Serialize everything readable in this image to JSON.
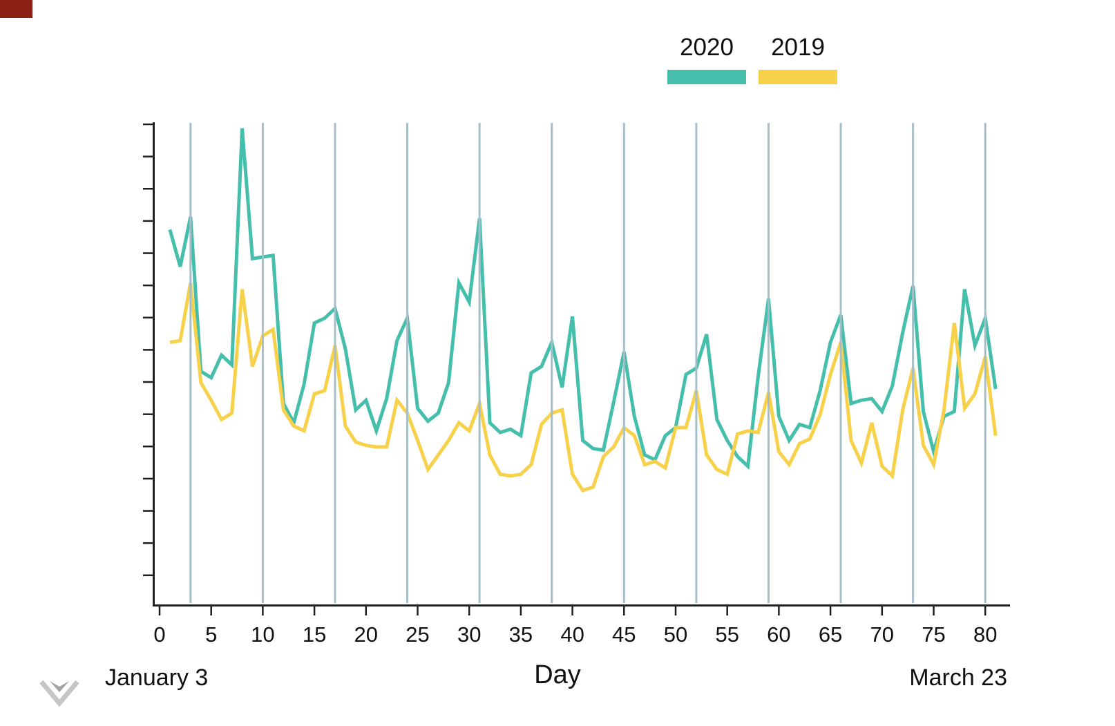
{
  "page": {
    "background": "#ffffff"
  },
  "corner_marker": {
    "color": "#8b2015"
  },
  "legend": {
    "items": [
      {
        "label": "2020",
        "color": "#45bfac"
      },
      {
        "label": "2019",
        "color": "#f8d14b"
      }
    ]
  },
  "axis": {
    "x_tick_values": [
      0,
      5,
      10,
      15,
      20,
      25,
      30,
      35,
      40,
      45,
      50,
      55,
      60,
      65,
      70,
      75,
      80
    ],
    "gridline_days": [
      3,
      10,
      17,
      24,
      31,
      38,
      45,
      52,
      59,
      66,
      73,
      80
    ],
    "y_tick_count": 15,
    "xlabel": "Day",
    "start_annotation": "January 3",
    "end_annotation": "March 23",
    "axis_color": "#1f1f1f",
    "gridline_color": "#a6bec7",
    "tick_label_color": "#111111"
  },
  "chart_data": {
    "type": "line",
    "title": "",
    "xlabel": "Day",
    "ylabel": "",
    "x_range": [
      0,
      81
    ],
    "x_axis_note": "days numbered 1-81; day 1 = January 3, day 81 = March 23; vertical gridlines mark weekly intervals (days 3,10,17,24,31,38,45,52,59,66,73,80)",
    "y_axis_note": "no numeric y-axis labels shown; values below are in y-axis tick units (15 unlabeled ticks, axis baseline = 0)",
    "legend_position": "top",
    "grid": {
      "vertical_weekly": true,
      "horizontal": false
    },
    "x": [
      1,
      2,
      3,
      4,
      5,
      6,
      7,
      8,
      9,
      10,
      11,
      12,
      13,
      14,
      15,
      16,
      17,
      18,
      19,
      20,
      21,
      22,
      23,
      24,
      25,
      26,
      27,
      28,
      29,
      30,
      31,
      32,
      33,
      34,
      35,
      36,
      37,
      38,
      39,
      40,
      41,
      42,
      43,
      44,
      45,
      46,
      47,
      48,
      49,
      50,
      51,
      52,
      53,
      54,
      55,
      56,
      57,
      58,
      59,
      60,
      61,
      62,
      63,
      64,
      65,
      66,
      67,
      68,
      69,
      70,
      71,
      72,
      73,
      74,
      75,
      76,
      77,
      78,
      79,
      80,
      81
    ],
    "series": [
      {
        "name": "2020",
        "color": "#45bfac",
        "values": [
          11.6,
          10.45,
          12,
          7.2,
          7,
          7.7,
          7.4,
          14.75,
          10.7,
          10.75,
          10.8,
          6.2,
          5.6,
          6.8,
          8.7,
          8.85,
          9.15,
          7.9,
          6,
          6.3,
          5.35,
          6.35,
          8.15,
          8.85,
          6.05,
          5.65,
          5.9,
          6.85,
          9.95,
          9.35,
          11.95,
          5.6,
          5.3,
          5.4,
          5.2,
          7.15,
          7.35,
          8.1,
          6.7,
          8.9,
          5.05,
          4.8,
          4.75,
          6.25,
          7.8,
          5.8,
          4.6,
          4.45,
          5.2,
          5.45,
          7.1,
          7.3,
          8.35,
          5.7,
          5.05,
          4.55,
          4.25,
          7.05,
          9.45,
          5.8,
          5.05,
          5.55,
          5.45,
          6.6,
          8.1,
          8.95,
          6.2,
          6.3,
          6.35,
          5.95,
          6.75,
          8.4,
          9.85,
          5.95,
          4.7,
          5.8,
          5.95,
          9.75,
          8,
          8.85,
          6.65
        ]
      },
      {
        "name": "2019",
        "color": "#f8d14b",
        "values": [
          8.1,
          8.15,
          9.95,
          6.85,
          6.3,
          5.7,
          5.9,
          9.75,
          7.35,
          8.3,
          8.5,
          6,
          5.5,
          5.35,
          6.5,
          6.6,
          8,
          5.5,
          5,
          4.9,
          4.85,
          4.85,
          6.3,
          5.9,
          5.05,
          4.15,
          4.6,
          5.05,
          5.6,
          5.35,
          6.2,
          4.6,
          4,
          3.95,
          4,
          4.3,
          5.55,
          5.9,
          6,
          4,
          3.5,
          3.6,
          4.55,
          4.85,
          5.45,
          5.2,
          4.3,
          4.4,
          4.2,
          5.45,
          5.45,
          6.6,
          4.6,
          4.15,
          4,
          5.25,
          5.35,
          5.3,
          6.55,
          4.7,
          4.3,
          4.95,
          5.1,
          5.85,
          7.1,
          8.1,
          5.05,
          4.35,
          5.6,
          4.25,
          3.95,
          6,
          7.3,
          4.9,
          4.3,
          6,
          8.7,
          6.05,
          6.5,
          7.65,
          5.2
        ]
      }
    ]
  }
}
